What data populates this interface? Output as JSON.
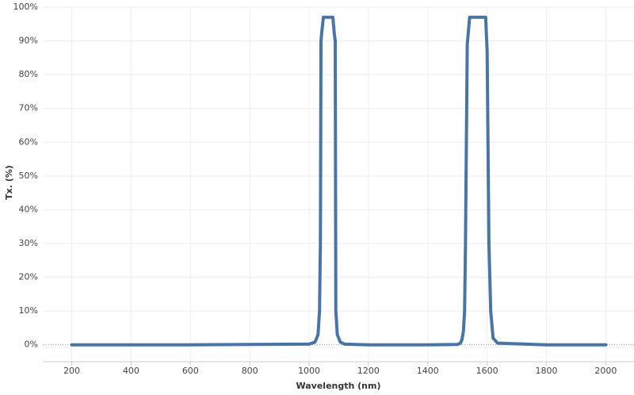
{
  "chart_data": {
    "type": "line",
    "x_label": "Wavelength (nm)",
    "y_label": "Tx. (%)",
    "x": [
      200,
      400,
      600,
      800,
      1000,
      1020,
      1030,
      1035,
      1038,
      1040,
      1042,
      1048,
      1080,
      1085,
      1088,
      1090,
      1095,
      1105,
      1120,
      1200,
      1400,
      1500,
      1510,
      1515,
      1520,
      1524,
      1527,
      1533,
      1541,
      1595,
      1600,
      1606,
      1612,
      1620,
      1635,
      1800,
      2000
    ],
    "series": [
      {
        "color": "#4a74a6",
        "values": [
          0,
          0,
          0,
          0.1,
          0.2,
          0.8,
          3,
          10,
          30,
          90,
          92,
          97,
          97,
          92,
          90,
          10,
          3,
          0.8,
          0.2,
          0,
          0,
          0.1,
          0.5,
          1.5,
          4,
          10,
          30,
          89,
          97,
          97,
          87,
          30,
          10,
          2,
          0.5,
          0,
          0
        ]
      }
    ],
    "xlim": [
      105,
      2095
    ],
    "xticks": [
      200,
      400,
      600,
      800,
      1000,
      1200,
      1400,
      1600,
      1800,
      2000
    ],
    "ylim": [
      -5,
      100
    ],
    "yticks": [
      {
        "value": 0,
        "label": "0%"
      },
      {
        "value": 10,
        "label": "10%"
      },
      {
        "value": 20,
        "label": "20%"
      },
      {
        "value": 30,
        "label": "30%"
      },
      {
        "value": 40,
        "label": "40%"
      },
      {
        "value": 50,
        "label": "50%"
      },
      {
        "value": 60,
        "label": "60%"
      },
      {
        "value": 70,
        "label": "70%"
      },
      {
        "value": 80,
        "label": "80%"
      },
      {
        "value": 90,
        "label": "90%"
      },
      {
        "value": 100,
        "label": "100%"
      }
    ],
    "grid": true
  }
}
